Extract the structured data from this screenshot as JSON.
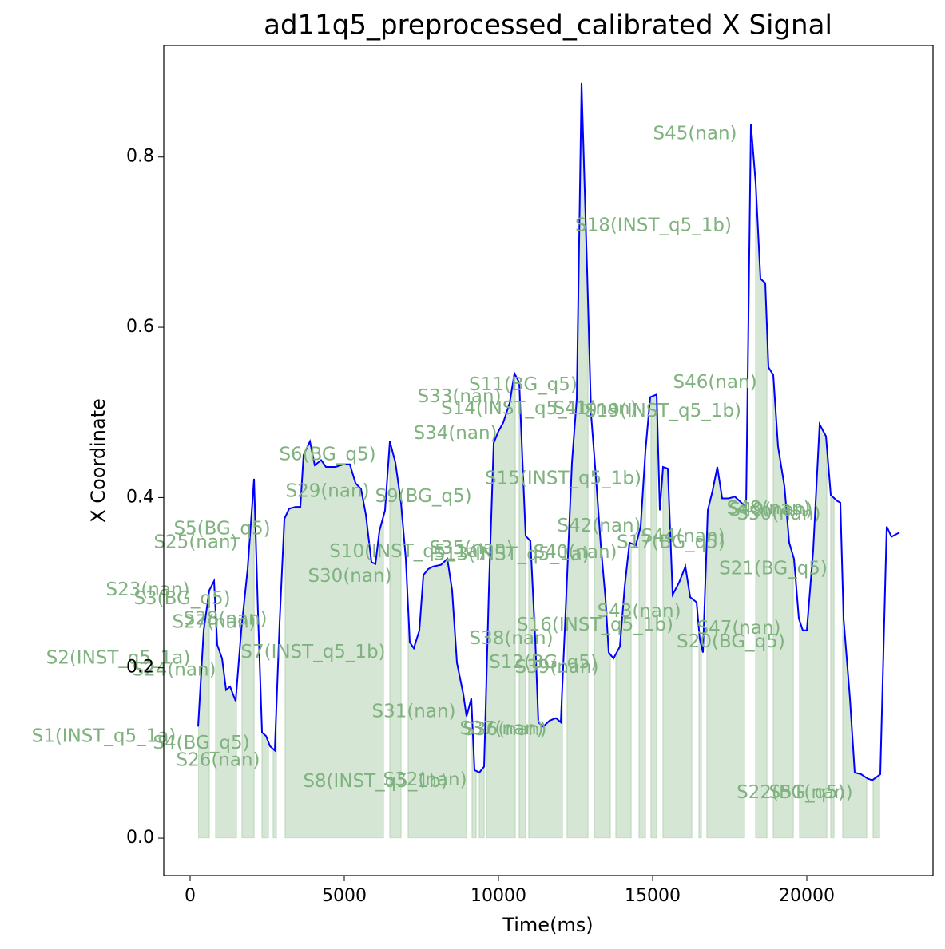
{
  "chart_data": {
    "type": "line",
    "title": "ad11q5_preprocessed_calibrated X Signal",
    "xlabel": "Time(ms)",
    "ylabel": "X Coordinate",
    "color": "#0000ff",
    "fill_color": "#d5e6d5",
    "annotation_color": "#7fb27f",
    "xlim": [
      -855,
      24093
    ],
    "ylim": [
      -0.044,
      0.931
    ],
    "xticks": [
      0,
      5000,
      10000,
      15000,
      20000
    ],
    "yticks": [
      {
        "value": 0,
        "label": "0.0"
      },
      0.2,
      0.4,
      0.6,
      0.8
    ],
    "x": [
      259,
      440,
      622,
      777,
      880,
      1036,
      1166,
      1295,
      1477,
      1658,
      1865,
      2073,
      2202,
      2332,
      2461,
      2591,
      2746,
      2902,
      3057,
      3212,
      3420,
      3575,
      3679,
      3886,
      4041,
      4249,
      4404,
      4715,
      4974,
      5181,
      5363,
      5544,
      5699,
      5881,
      6010,
      6140,
      6321,
      6477,
      6658,
      6839,
      6995,
      7124,
      7254,
      7435,
      7565,
      7720,
      7876,
      8135,
      8342,
      8497,
      8653,
      8860,
      8964,
      9119,
      9223,
      9378,
      9534,
      9689,
      9845,
      10000,
      10155,
      10363,
      10518,
      10674,
      10803,
      10881,
      11036,
      11192,
      11295,
      11451,
      11658,
      11865,
      12021,
      12228,
      12383,
      12539,
      12694,
      12876,
      13005,
      13161,
      13316,
      13472,
      13575,
      13731,
      13938,
      14093,
      14249,
      14456,
      14611,
      14767,
      14922,
      15130,
      15233,
      15337,
      15492,
      15648,
      15855,
      16062,
      16218,
      16425,
      16528,
      16632,
      16788,
      16943,
      17098,
      17254,
      17461,
      17668,
      17876,
      18031,
      18187,
      18342,
      18497,
      18653,
      18756,
      18912,
      19067,
      19275,
      19430,
      19585,
      19741,
      19870,
      20000,
      20207,
      20415,
      20622,
      20777,
      20984,
      21088,
      21192,
      21399,
      21554,
      21762,
      21969,
      22124,
      22383,
      22591,
      22746,
      23005
    ],
    "values": [
      0.131,
      0.244,
      0.291,
      0.302,
      0.227,
      0.211,
      0.174,
      0.178,
      0.161,
      0.244,
      0.316,
      0.422,
      0.264,
      0.124,
      0.12,
      0.108,
      0.103,
      0.253,
      0.375,
      0.387,
      0.389,
      0.389,
      0.45,
      0.466,
      0.438,
      0.444,
      0.436,
      0.436,
      0.439,
      0.439,
      0.417,
      0.41,
      0.38,
      0.324,
      0.322,
      0.361,
      0.385,
      0.466,
      0.441,
      0.394,
      0.328,
      0.23,
      0.223,
      0.244,
      0.309,
      0.316,
      0.319,
      0.321,
      0.328,
      0.291,
      0.206,
      0.169,
      0.143,
      0.164,
      0.08,
      0.077,
      0.084,
      0.291,
      0.464,
      0.478,
      0.488,
      0.511,
      0.546,
      0.535,
      0.422,
      0.355,
      0.349,
      0.234,
      0.136,
      0.131,
      0.138,
      0.141,
      0.136,
      0.309,
      0.441,
      0.516,
      0.887,
      0.666,
      0.497,
      0.424,
      0.345,
      0.281,
      0.218,
      0.211,
      0.225,
      0.295,
      0.347,
      0.344,
      0.366,
      0.455,
      0.518,
      0.521,
      0.385,
      0.436,
      0.434,
      0.286,
      0.3,
      0.319,
      0.283,
      0.277,
      0.234,
      0.218,
      0.385,
      0.408,
      0.436,
      0.399,
      0.399,
      0.401,
      0.394,
      0.389,
      0.839,
      0.769,
      0.657,
      0.652,
      0.553,
      0.544,
      0.46,
      0.413,
      0.347,
      0.328,
      0.258,
      0.244,
      0.244,
      0.338,
      0.486,
      0.472,
      0.403,
      0.396,
      0.394,
      0.258,
      0.164,
      0.077,
      0.075,
      0.07,
      0.068,
      0.075,
      0.366,
      0.354,
      0.359
    ],
    "segments": [
      [
        259,
        622
      ],
      [
        829,
        1503
      ],
      [
        1684,
        2073
      ],
      [
        2332,
        2539
      ],
      [
        2694,
        2798
      ],
      [
        3083,
        6269
      ],
      [
        6477,
        6839
      ],
      [
        7073,
        8964
      ],
      [
        9145,
        9275
      ],
      [
        9378,
        9534
      ],
      [
        9611,
        10544
      ],
      [
        10674,
        10881
      ],
      [
        10984,
        12073
      ],
      [
        12228,
        12902
      ],
      [
        13109,
        13627
      ],
      [
        13808,
        14301
      ],
      [
        14560,
        14767
      ],
      [
        14948,
        15130
      ],
      [
        15337,
        16269
      ],
      [
        16503,
        16580
      ],
      [
        16762,
        17979
      ],
      [
        18342,
        18705
      ],
      [
        18912,
        19560
      ],
      [
        19767,
        20648
      ],
      [
        20777,
        20881
      ],
      [
        21166,
        21943
      ],
      [
        22150,
        22358
      ]
    ],
    "annotations": [
      {
        "text": "S1(INST_q5_1a)",
        "x": -2798,
        "y": 0.119
      },
      {
        "text": "S2(INST_q5_1a)",
        "x": -2332,
        "y": 0.211
      },
      {
        "text": "S3(BG_q5)",
        "x": -259,
        "y": 0.281
      },
      {
        "text": "S4(BG_q5)",
        "x": 363,
        "y": 0.111
      },
      {
        "text": "S5(BG_q5)",
        "x": 1036,
        "y": 0.363
      },
      {
        "text": "S6(BG_q5)",
        "x": 4456,
        "y": 0.45
      },
      {
        "text": "S7(INST_q5_1b)",
        "x": 3990,
        "y": 0.218
      },
      {
        "text": "S8(INST_q5_1b)",
        "x": 6010,
        "y": 0.066
      },
      {
        "text": "S9(BG_q5)",
        "x": 7565,
        "y": 0.401
      },
      {
        "text": "S10(INST_q5_1a)",
        "x": 7047,
        "y": 0.336
      },
      {
        "text": "S11(BG_q5)",
        "x": 10803,
        "y": 0.532
      },
      {
        "text": "S12(BG_q5)",
        "x": 11451,
        "y": 0.206
      },
      {
        "text": "S13(INST_q5_1a)",
        "x": 10415,
        "y": 0.333
      },
      {
        "text": "S14(INST_q5_1b)",
        "x": 10674,
        "y": 0.504
      },
      {
        "text": "S15(INST_q5_1b)",
        "x": 12098,
        "y": 0.422
      },
      {
        "text": "S16(INST_q5_1b)",
        "x": 13135,
        "y": 0.25
      },
      {
        "text": "S17(BG_q5)",
        "x": 15596,
        "y": 0.347
      },
      {
        "text": "S18(INST_q5_1b)",
        "x": 15026,
        "y": 0.719
      },
      {
        "text": "S19(INST_q5_1b)",
        "x": 15337,
        "y": 0.501
      },
      {
        "text": "S20(BG_q5)",
        "x": 17539,
        "y": 0.23
      },
      {
        "text": "S21(BG_q5)",
        "x": 18912,
        "y": 0.316
      },
      {
        "text": "S22(BG_q5)",
        "x": 19482,
        "y": 0.053
      },
      {
        "text": "S23(nan)",
        "x": -1373,
        "y": 0.291
      },
      {
        "text": "S24(nan)",
        "x": -518,
        "y": 0.197
      },
      {
        "text": "S25(nan)",
        "x": 181,
        "y": 0.347
      },
      {
        "text": "S26(nan)",
        "x": 907,
        "y": 0.091
      },
      {
        "text": "S27(nan)",
        "x": 777,
        "y": 0.253
      },
      {
        "text": "S28(nan)",
        "x": 1140,
        "y": 0.257
      },
      {
        "text": "S29(nan)",
        "x": 4456,
        "y": 0.407
      },
      {
        "text": "S30(nan)",
        "x": 5181,
        "y": 0.307
      },
      {
        "text": "S31(nan)",
        "x": 7254,
        "y": 0.148
      },
      {
        "text": "S32(nan)",
        "x": 7617,
        "y": 0.068
      },
      {
        "text": "S33(nan)",
        "x": 8731,
        "y": 0.518
      },
      {
        "text": "S34(nan)",
        "x": 8601,
        "y": 0.475
      },
      {
        "text": "S35(nan)",
        "x": 9119,
        "y": 0.34
      },
      {
        "text": "S36(nan)",
        "x": 10207,
        "y": 0.127
      },
      {
        "text": "S37(nan)",
        "x": 10104,
        "y": 0.128
      },
      {
        "text": "S38(nan)",
        "x": 10415,
        "y": 0.234
      },
      {
        "text": "S39(nan)",
        "x": 11891,
        "y": 0.2
      },
      {
        "text": "S40(nan)",
        "x": 12487,
        "y": 0.335
      },
      {
        "text": "S41(nan)",
        "x": 13135,
        "y": 0.504
      },
      {
        "text": "S42(nan)",
        "x": 13264,
        "y": 0.366
      },
      {
        "text": "S43(nan)",
        "x": 14560,
        "y": 0.266
      },
      {
        "text": "S44(nan)",
        "x": 15984,
        "y": 0.354
      },
      {
        "text": "S45(nan)",
        "x": 16373,
        "y": 0.827
      },
      {
        "text": "S46(nan)",
        "x": 17021,
        "y": 0.535
      },
      {
        "text": "S47(nan)",
        "x": 17798,
        "y": 0.246
      },
      {
        "text": "S48(nan)",
        "x": 18756,
        "y": 0.387
      },
      {
        "text": "S49(nan)",
        "x": 18834,
        "y": 0.385
      },
      {
        "text": "S50(nan)",
        "x": 19093,
        "y": 0.38
      },
      {
        "text": "S51(nan)",
        "x": 20130,
        "y": 0.053
      }
    ]
  }
}
